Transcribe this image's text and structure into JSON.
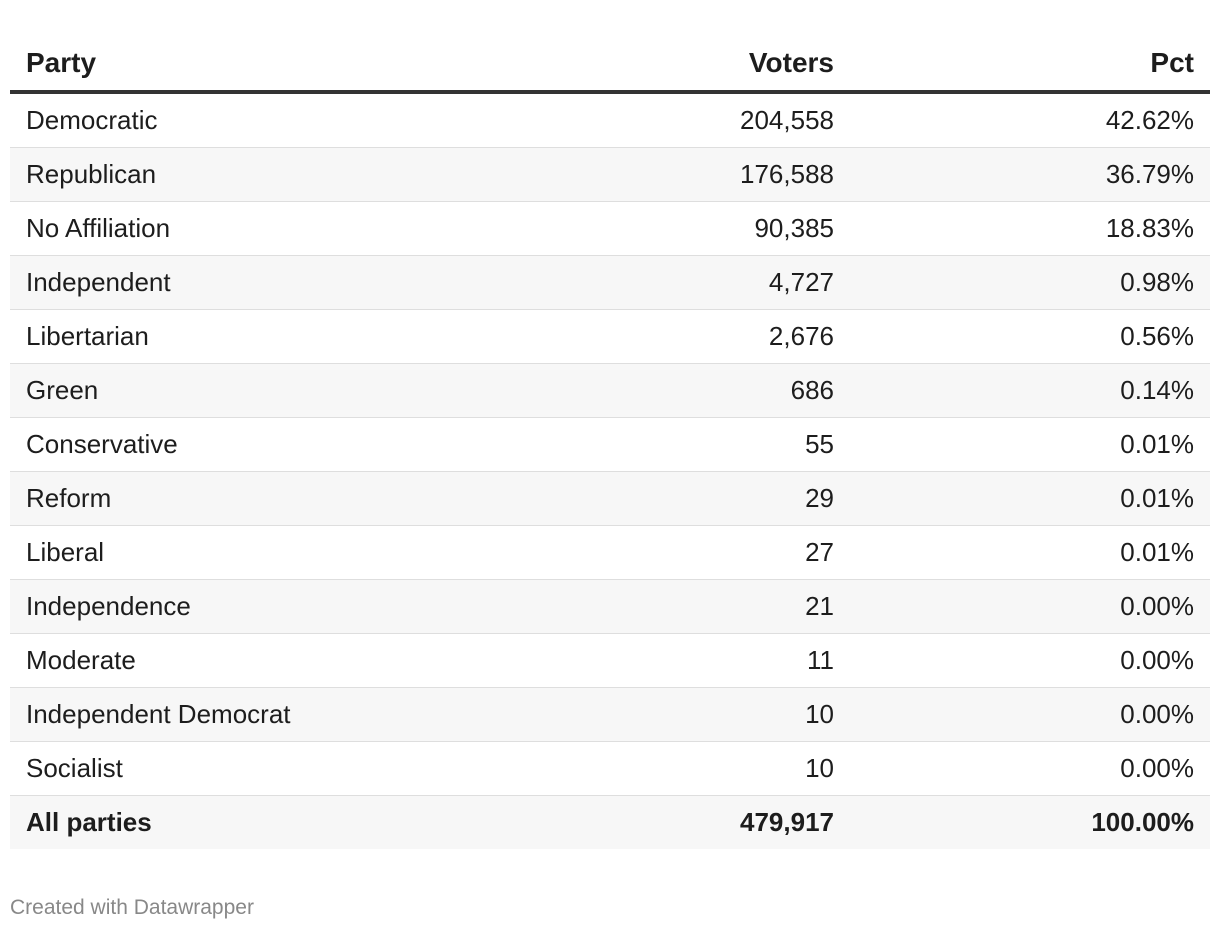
{
  "chart_data": {
    "type": "table",
    "columns": [
      "Party",
      "Voters",
      "Pct"
    ],
    "rows": [
      {
        "party": "Democratic",
        "voters": "204,558",
        "pct": "42.62%"
      },
      {
        "party": "Republican",
        "voters": "176,588",
        "pct": "36.79%"
      },
      {
        "party": "No Affiliation",
        "voters": "90,385",
        "pct": "18.83%"
      },
      {
        "party": "Independent",
        "voters": "4,727",
        "pct": "0.98%"
      },
      {
        "party": "Libertarian",
        "voters": "2,676",
        "pct": "0.56%"
      },
      {
        "party": "Green",
        "voters": "686",
        "pct": "0.14%"
      },
      {
        "party": "Conservative",
        "voters": "55",
        "pct": "0.01%"
      },
      {
        "party": "Reform",
        "voters": "29",
        "pct": "0.01%"
      },
      {
        "party": "Liberal",
        "voters": "27",
        "pct": "0.01%"
      },
      {
        "party": "Independence",
        "voters": "21",
        "pct": "0.00%"
      },
      {
        "party": "Moderate",
        "voters": "11",
        "pct": "0.00%"
      },
      {
        "party": "Independent Democrat",
        "voters": "10",
        "pct": "0.00%"
      },
      {
        "party": "Socialist",
        "voters": "10",
        "pct": "0.00%"
      }
    ],
    "total": {
      "party": "All parties",
      "voters": "479,917",
      "pct": "100.00%"
    }
  },
  "footer": {
    "credit": "Created with Datawrapper"
  }
}
